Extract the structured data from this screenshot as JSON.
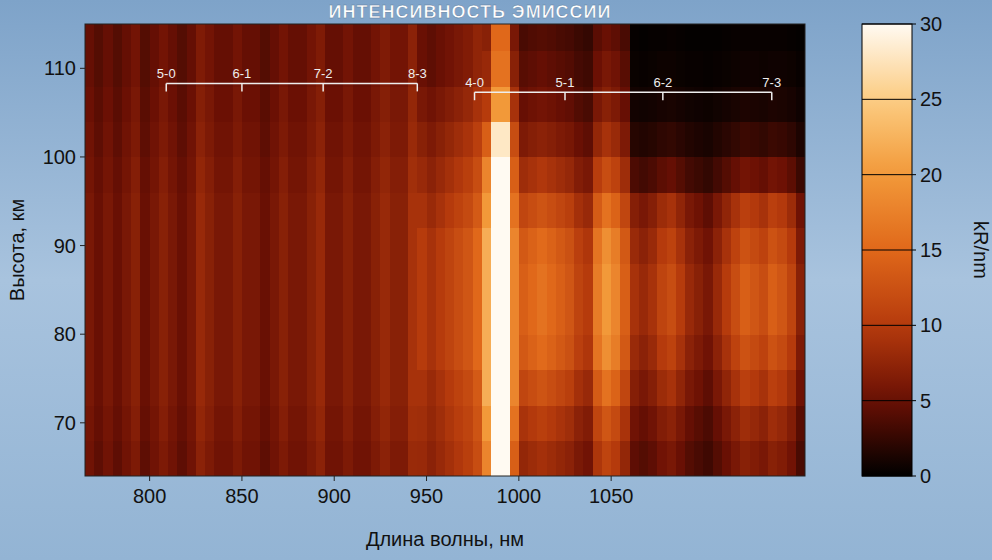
{
  "chart_data": {
    "type": "heatmap",
    "title": "ИНТЕНСИВНОСТЬ ЭМИССИИ",
    "xlabel": "Длина волны, нм",
    "ylabel": "Высота, км",
    "xlim": [
      765,
      1155
    ],
    "ylim": [
      64,
      115
    ],
    "xticks": [
      800,
      850,
      900,
      950,
      1000,
      1050
    ],
    "yticks": [
      70,
      80,
      90,
      100,
      110
    ],
    "x_bins": [
      765,
      770,
      775,
      780,
      785,
      790,
      795,
      800,
      805,
      810,
      815,
      820,
      825,
      830,
      835,
      840,
      845,
      850,
      855,
      860,
      865,
      870,
      875,
      880,
      885,
      890,
      895,
      900,
      905,
      910,
      915,
      920,
      925,
      930,
      935,
      940,
      945,
      950,
      955,
      960,
      965,
      970,
      975,
      980,
      985,
      990,
      995,
      1000,
      1005,
      1010,
      1015,
      1020,
      1025,
      1030,
      1035,
      1040,
      1045,
      1050,
      1055,
      1060,
      1065,
      1070,
      1075,
      1080,
      1085,
      1090,
      1095,
      1100,
      1105,
      1110,
      1115,
      1120,
      1125,
      1130,
      1135,
      1140,
      1145,
      1150,
      1155
    ],
    "y_bins": [
      64,
      68,
      72,
      76,
      80,
      84,
      88,
      92,
      96,
      100,
      104,
      108,
      112,
      115
    ],
    "cells": [
      [
        5.4,
        4.5,
        5.4,
        4.5,
        5.4,
        6.3,
        4.5,
        5.4,
        6.3,
        5.4,
        4.5,
        5.4,
        7.2,
        6.3,
        5.4,
        5.4,
        6.3,
        5.4,
        5.4,
        4.5,
        5.4,
        6.3,
        5.4,
        5.4,
        6.3,
        7.2,
        5.4,
        5.4,
        6.3,
        5.4,
        5.4,
        6.3,
        7.2,
        6.3,
        6.3,
        8.1,
        8,
        7.2,
        8,
        8.8,
        9.6,
        10.4,
        12,
        18,
        30,
        30,
        14,
        7.7,
        8.3,
        8.8,
        8.3,
        7.7,
        7.2,
        6.1,
        5.5,
        9.4,
        11,
        9.9,
        7.7,
        4.5,
        4,
        4.5,
        5.5,
        6,
        5,
        4,
        3.5,
        3,
        4,
        5,
        6,
        7,
        6.5,
        6,
        7,
        6.5,
        5.5,
        3.5
      ],
      [
        5.7,
        4.8,
        5.7,
        4.8,
        5.7,
        6.7,
        4.8,
        5.7,
        6.7,
        5.7,
        4.8,
        5.7,
        7.6,
        6.7,
        5.7,
        5.7,
        6.7,
        5.7,
        5.7,
        4.8,
        5.7,
        6.7,
        5.7,
        5.7,
        6.7,
        7.6,
        5.7,
        5.7,
        6.7,
        5.7,
        5.7,
        6.7,
        7.6,
        6.7,
        6.7,
        8.6,
        8.5,
        7.7,
        8.5,
        9.4,
        10.2,
        11,
        12.8,
        20,
        30,
        30,
        16,
        9.1,
        9.8,
        10.4,
        9.8,
        9.1,
        8.5,
        7.2,
        6.5,
        11.1,
        13,
        11.7,
        9.1,
        5.4,
        4.8,
        5.4,
        6.6,
        7.2,
        6,
        4.8,
        4.2,
        3.6,
        4.8,
        6,
        7.2,
        8.4,
        7.8,
        7.2,
        8.4,
        7.8,
        6.6,
        4.2
      ],
      [
        6,
        5,
        6,
        5,
        6,
        7,
        5,
        6,
        7,
        6,
        5,
        6,
        8,
        7,
        6,
        6,
        7,
        6,
        6,
        5,
        6,
        7,
        6,
        6,
        7,
        8,
        6,
        6,
        7,
        6,
        6,
        7,
        8,
        7,
        7,
        9,
        9,
        8.1,
        9,
        9.9,
        10.8,
        11.7,
        13.5,
        22,
        30,
        30,
        18,
        11.2,
        12,
        12.8,
        12,
        11.2,
        10.4,
        8.8,
        8,
        13.6,
        16,
        14.4,
        11.2,
        6.8,
        6,
        6.8,
        8.3,
        9,
        7.5,
        6,
        5.3,
        4.5,
        6,
        7.5,
        9,
        10.5,
        9.8,
        9,
        10.5,
        9.8,
        8.3,
        5.3
      ],
      [
        6,
        5,
        6,
        5,
        6,
        7,
        5,
        6,
        7,
        6,
        5,
        6,
        8,
        7,
        6,
        6,
        7,
        6,
        6,
        5,
        6,
        7,
        6,
        6,
        7,
        8,
        6,
        6,
        7,
        6,
        6,
        7,
        8,
        7,
        7,
        9,
        10,
        9,
        10,
        11,
        12,
        13,
        15,
        22,
        30,
        30,
        18,
        13.3,
        14.3,
        15.2,
        14.3,
        13.3,
        12.4,
        10.5,
        9.5,
        16.2,
        19,
        17.1,
        13.3,
        8.1,
        7.2,
        8.1,
        9.9,
        10.8,
        9,
        7.2,
        6.3,
        5.4,
        7.2,
        9,
        10.8,
        12.6,
        11.7,
        10.8,
        12.6,
        11.7,
        9.9,
        6.3
      ],
      [
        6,
        5,
        6,
        5,
        6,
        7,
        5,
        6,
        7,
        6,
        5,
        6,
        8,
        7,
        6,
        6,
        7,
        6,
        6,
        5,
        6,
        7,
        6,
        6,
        7,
        8,
        6,
        6,
        7,
        6,
        6,
        7,
        8,
        7,
        7,
        9,
        10,
        9,
        10,
        11,
        12,
        13,
        15,
        22,
        30,
        30,
        18,
        14,
        15,
        16,
        15,
        14,
        13,
        11,
        10,
        17,
        20,
        18,
        14,
        9,
        8,
        9,
        11,
        12,
        10,
        8,
        7,
        6,
        8,
        10,
        12,
        14,
        13,
        12,
        14,
        13,
        11,
        7
      ],
      [
        6,
        5,
        6,
        5,
        6,
        7,
        5,
        6,
        7,
        6,
        5,
        6,
        8,
        7,
        6,
        6,
        7,
        6,
        6,
        5,
        6,
        7,
        6,
        6,
        7,
        8,
        6,
        6,
        7,
        6,
        6,
        7,
        8,
        7,
        7,
        9,
        10,
        9,
        10,
        11,
        12,
        13,
        15,
        22,
        30,
        30,
        18,
        14,
        15,
        16,
        15,
        14,
        13,
        11,
        10,
        17,
        20,
        18,
        14,
        9,
        8,
        9,
        11,
        12,
        10,
        8,
        7,
        6,
        8,
        10,
        12,
        14,
        13,
        12,
        14,
        13,
        11,
        7
      ],
      [
        6,
        5,
        6,
        5,
        6,
        7,
        5,
        6,
        7,
        6,
        5,
        6,
        8,
        7,
        6,
        6,
        7,
        6,
        6,
        5,
        6,
        7,
        6,
        6,
        7,
        8,
        6,
        6,
        7,
        6,
        6,
        7,
        8,
        7,
        7,
        9,
        10,
        9,
        10,
        11,
        12,
        13,
        15,
        22,
        30,
        30,
        18,
        13.3,
        14.3,
        15.2,
        14.3,
        13.3,
        12.4,
        10.5,
        9.5,
        16.2,
        19,
        17.1,
        13.3,
        8.1,
        7.2,
        8.1,
        9.9,
        10.8,
        9,
        7.2,
        6.3,
        5.4,
        7.2,
        9,
        10.8,
        12.6,
        11.7,
        10.8,
        12.6,
        11.7,
        9.9,
        6.3
      ],
      [
        6,
        5,
        6,
        5,
        6,
        7,
        5,
        6,
        7,
        6,
        5,
        6,
        8,
        7,
        6,
        6,
        7,
        6,
        6,
        5,
        6,
        7,
        6,
        6,
        7,
        8,
        6,
        6,
        7,
        6,
        6,
        7,
        8,
        7,
        7,
        9,
        9,
        8.1,
        9,
        9.9,
        10.8,
        11.7,
        13.5,
        20,
        30,
        30,
        16,
        11.2,
        12,
        12.8,
        12,
        11.2,
        10.4,
        8.8,
        8,
        13.6,
        16,
        14.4,
        11.2,
        6.8,
        6,
        6.8,
        8.3,
        9,
        7.5,
        6,
        5.3,
        4.5,
        6,
        7.5,
        9,
        10.5,
        9.8,
        9,
        10.5,
        9.8,
        8.3,
        5.3
      ],
      [
        5.7,
        4.8,
        5.7,
        4.8,
        5.7,
        6.7,
        4.8,
        5.7,
        6.7,
        5.7,
        4.8,
        5.7,
        7.6,
        6.7,
        5.7,
        5.7,
        6.7,
        5.7,
        5.7,
        4.8,
        5.7,
        6.7,
        5.7,
        5.7,
        6.7,
        7.6,
        5.7,
        5.7,
        6.7,
        5.7,
        5.7,
        6.7,
        7.6,
        6.7,
        6.7,
        8.6,
        8,
        7.2,
        8,
        8.8,
        9.6,
        10.4,
        12,
        18,
        30,
        30,
        14,
        8.4,
        9,
        9.6,
        9,
        8.4,
        7.8,
        6.6,
        6,
        10.2,
        12,
        10.8,
        8.4,
        3.6,
        3.2,
        3.6,
        4.4,
        4.8,
        4,
        3.2,
        2.8,
        2.4,
        3.2,
        4,
        4.8,
        5.6,
        5.2,
        4.8,
        5.6,
        5.2,
        4.4,
        2.8
      ],
      [
        5.4,
        4.5,
        5.4,
        4.5,
        5.4,
        6.3,
        4.5,
        5.4,
        6.3,
        5.4,
        4.5,
        5.4,
        7.2,
        6.3,
        5.4,
        5.4,
        6.3,
        5.4,
        5.4,
        4.5,
        5.4,
        6.3,
        5.4,
        5.4,
        6.3,
        7.2,
        5.4,
        5.4,
        6.3,
        5.4,
        5.4,
        6.3,
        7.2,
        6.3,
        6.3,
        8.1,
        7,
        6.3,
        7,
        7.7,
        8.4,
        9.1,
        10.5,
        14,
        28,
        28,
        12,
        6.3,
        6.8,
        7.2,
        6.8,
        6.3,
        5.9,
        5,
        4.5,
        7.7,
        9,
        8.1,
        6.3,
        1.8,
        1.6,
        1.8,
        2.2,
        2.4,
        2,
        1.6,
        1.4,
        1.2,
        1.6,
        2,
        2.4,
        2.8,
        2.6,
        2.4,
        2.8,
        2.6,
        2.2,
        1.4
      ],
      [
        5.1,
        4.3,
        5.1,
        4.3,
        5.1,
        6,
        4.3,
        5.1,
        6,
        5.1,
        4.3,
        5.1,
        6.8,
        6,
        5.1,
        5.1,
        6,
        5.1,
        5.1,
        4.3,
        5.1,
        6,
        5.1,
        5.1,
        6,
        6.8,
        5.1,
        5.1,
        6,
        5.1,
        5.1,
        6,
        6.8,
        6,
        6,
        7.7,
        6,
        5.4,
        6,
        6.6,
        7.2,
        7.8,
        9,
        10,
        20,
        20,
        9,
        4.9,
        5.3,
        5.6,
        5.3,
        4.9,
        4.6,
        3.9,
        3.5,
        6,
        7,
        6.3,
        4.9,
        0.9,
        0.8,
        0.9,
        1.1,
        1.2,
        1,
        0.8,
        0.7,
        0.6,
        0.8,
        1,
        1.2,
        1.4,
        1.3,
        1.2,
        1.4,
        1.3,
        1.1,
        0.7
      ],
      [
        4.8,
        4,
        4.8,
        4,
        4.8,
        5.6,
        4,
        4.8,
        5.6,
        4.8,
        4,
        4.8,
        6.4,
        5.6,
        4.8,
        4.8,
        5.6,
        4.8,
        4.8,
        4,
        4.8,
        5.6,
        4.8,
        4.8,
        5.6,
        6.4,
        4.8,
        4.8,
        5.6,
        4.8,
        4.8,
        5.6,
        6.4,
        5.6,
        5.6,
        7.2,
        5,
        4.5,
        5,
        5.5,
        6,
        6.5,
        7.5,
        8,
        16,
        16,
        7,
        4.2,
        4.5,
        4.8,
        4.5,
        4.2,
        3.9,
        3.3,
        3,
        5.1,
        6,
        5.4,
        4.2,
        0.5,
        0.4,
        0.5,
        0.6,
        0.6,
        0.5,
        0.4,
        0.4,
        0.3,
        0.4,
        0.5,
        0.6,
        0.7,
        0.7,
        0.6,
        0.7,
        0.7,
        0.6,
        0.4
      ],
      [
        4.8,
        4,
        4.8,
        4,
        4.8,
        5.6,
        4,
        4.8,
        5.6,
        4.8,
        4,
        4.8,
        6.4,
        5.6,
        4.8,
        4.8,
        5.6,
        4.8,
        4.8,
        4,
        4.8,
        5.6,
        4.8,
        4.8,
        5.6,
        6.4,
        4.8,
        4.8,
        5.6,
        4.8,
        4.8,
        5.6,
        6.4,
        5.6,
        5.6,
        7.2,
        5,
        4.5,
        5,
        5.5,
        6,
        6.5,
        7.5,
        7,
        15,
        15,
        6,
        3.5,
        3.8,
        4,
        3.8,
        3.5,
        3.3,
        2.8,
        2.5,
        4.3,
        5,
        4.5,
        3.5,
        0.3,
        0.2,
        0.3,
        0.3,
        0.4,
        0.3,
        0.2,
        0.2,
        0.2,
        0.2,
        0.3,
        0.4,
        0.4,
        0.4,
        0.4,
        0.4,
        0.4,
        0.3,
        0.2
      ]
    ],
    "colorbar": {
      "range": [
        0,
        30
      ],
      "ticks": [
        0,
        5,
        10,
        15,
        20,
        25,
        30
      ],
      "label": "kR/nm"
    },
    "annotations": [
      {
        "labels": [
          "5-0",
          "6-1",
          "7-2",
          "8-3"
        ],
        "x": [
          809,
          850,
          894,
          945
        ],
        "y": 108.3
      },
      {
        "labels": [
          "4-0",
          "5-1",
          "6-2",
          "7-3"
        ],
        "x": [
          976,
          1025,
          1078,
          1137
        ],
        "y": 107.3
      }
    ]
  }
}
